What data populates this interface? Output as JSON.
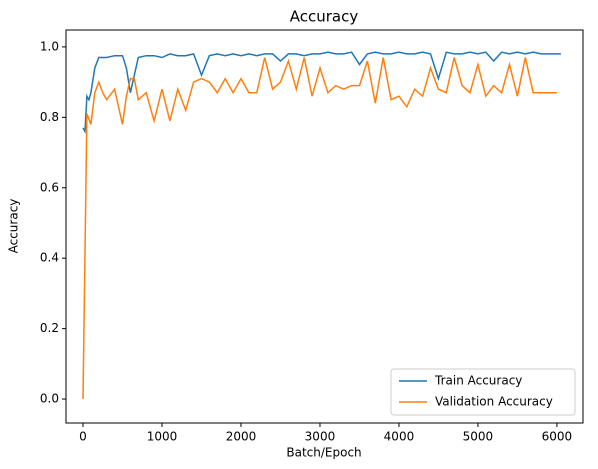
{
  "chart_data": {
    "type": "line",
    "title": "Accuracy",
    "xlabel": "Batch/Epoch",
    "ylabel": "Accuracy",
    "xlim": [
      -215,
      6330
    ],
    "xticks": [
      0,
      1000,
      2000,
      3000,
      4000,
      5000,
      6000
    ],
    "ylim": [
      -0.068,
      1.048
    ],
    "yticks": [
      {
        "value": 0,
        "label": "0.0"
      },
      {
        "value": 0.2,
        "label": "0.2"
      },
      {
        "value": 0.4,
        "label": "0.4"
      },
      {
        "value": 0.6,
        "label": "0.6"
      },
      {
        "value": 0.8,
        "label": "0.8"
      },
      {
        "value": 1,
        "label": "1.0"
      }
    ],
    "legend": "lower right",
    "series": [
      {
        "name": "Train Accuracy",
        "color": "#1f77b4",
        "x": [
          0,
          25,
          50,
          75,
          100,
          150,
          200,
          300,
          400,
          500,
          550,
          600,
          700,
          800,
          900,
          1000,
          1100,
          1200,
          1300,
          1400,
          1500,
          1600,
          1700,
          1800,
          1900,
          2000,
          2100,
          2200,
          2300,
          2400,
          2500,
          2600,
          2700,
          2800,
          2900,
          3000,
          3100,
          3200,
          3300,
          3400,
          3500,
          3600,
          3700,
          3800,
          3900,
          4000,
          4100,
          4200,
          4300,
          4400,
          4500,
          4600,
          4700,
          4800,
          4900,
          5000,
          5100,
          5200,
          5300,
          5400,
          5500,
          5600,
          5700,
          5800,
          5900,
          6000,
          6050
        ],
        "values": [
          0.77,
          0.76,
          0.86,
          0.85,
          0.87,
          0.94,
          0.97,
          0.97,
          0.975,
          0.975,
          0.94,
          0.87,
          0.97,
          0.975,
          0.975,
          0.97,
          0.98,
          0.975,
          0.975,
          0.98,
          0.92,
          0.975,
          0.98,
          0.975,
          0.98,
          0.975,
          0.98,
          0.975,
          0.98,
          0.98,
          0.96,
          0.98,
          0.98,
          0.975,
          0.98,
          0.98,
          0.985,
          0.98,
          0.98,
          0.985,
          0.95,
          0.98,
          0.985,
          0.98,
          0.98,
          0.985,
          0.98,
          0.98,
          0.985,
          0.98,
          0.91,
          0.985,
          0.98,
          0.98,
          0.985,
          0.98,
          0.985,
          0.96,
          0.985,
          0.98,
          0.985,
          0.98,
          0.985,
          0.98,
          0.98,
          0.98,
          0.98
        ]
      },
      {
        "name": "Validation Accuracy",
        "color": "#ff7f0e",
        "x": [
          0,
          50,
          100,
          150,
          200,
          250,
          300,
          400,
          500,
          550,
          600,
          650,
          700,
          800,
          900,
          1000,
          1100,
          1200,
          1300,
          1400,
          1500,
          1600,
          1700,
          1800,
          1900,
          2000,
          2100,
          2200,
          2300,
          2400,
          2500,
          2600,
          2700,
          2800,
          2900,
          3000,
          3100,
          3200,
          3300,
          3400,
          3500,
          3600,
          3700,
          3800,
          3900,
          4000,
          4100,
          4200,
          4300,
          4400,
          4500,
          4600,
          4700,
          4800,
          4900,
          5000,
          5100,
          5200,
          5300,
          5400,
          5500,
          5600,
          5700,
          5800,
          5900,
          5950,
          6000
        ],
        "values": [
          0.0,
          0.81,
          0.78,
          0.87,
          0.9,
          0.87,
          0.85,
          0.88,
          0.78,
          0.86,
          0.91,
          0.91,
          0.85,
          0.87,
          0.79,
          0.88,
          0.79,
          0.88,
          0.82,
          0.9,
          0.91,
          0.9,
          0.87,
          0.91,
          0.87,
          0.91,
          0.87,
          0.87,
          0.97,
          0.88,
          0.9,
          0.96,
          0.88,
          0.97,
          0.86,
          0.94,
          0.87,
          0.89,
          0.88,
          0.89,
          0.89,
          0.96,
          0.84,
          0.97,
          0.85,
          0.86,
          0.83,
          0.88,
          0.86,
          0.94,
          0.88,
          0.87,
          0.97,
          0.89,
          0.87,
          0.95,
          0.86,
          0.89,
          0.87,
          0.95,
          0.86,
          0.97,
          0.87,
          0.87,
          0.87,
          0.87,
          0.87
        ]
      }
    ]
  }
}
